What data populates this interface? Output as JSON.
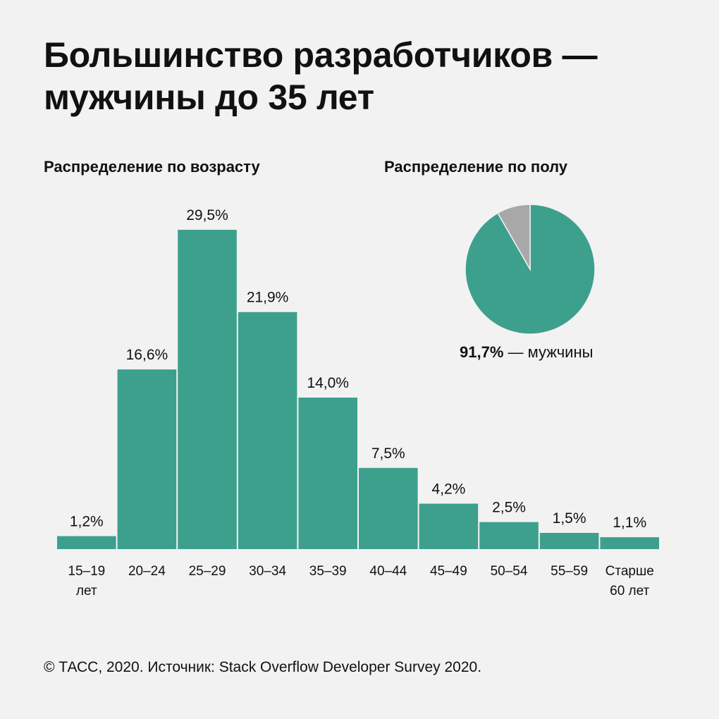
{
  "title_lines": [
    "Большинство разработчиков —",
    "мужчины до 35 лет"
  ],
  "colors": {
    "accent": "#3da08c",
    "secondary": "#a8a8a8",
    "background": "#f2f2f2",
    "text": "#111111"
  },
  "chart_data": [
    {
      "type": "bar",
      "title": "Распределение по возрасту",
      "categories": [
        [
          "15–19",
          "лет"
        ],
        [
          "20–24"
        ],
        [
          "25–29"
        ],
        [
          "30–34"
        ],
        [
          "35–39"
        ],
        [
          "40–44"
        ],
        [
          "45–49"
        ],
        [
          "50–54"
        ],
        [
          "55–59"
        ],
        [
          "Старше",
          "60 лет"
        ]
      ],
      "values": [
        1.2,
        16.6,
        29.5,
        21.9,
        14.0,
        7.5,
        4.2,
        2.5,
        1.5,
        1.1
      ],
      "value_labels": [
        "1,2%",
        "16,6%",
        "29,5%",
        "21,9%",
        "14,0%",
        "7,5%",
        "4,2%",
        "2,5%",
        "1,5%",
        "1,1%"
      ],
      "unit": "%",
      "ylim": [
        0,
        29.5
      ],
      "grid": false
    },
    {
      "type": "pie",
      "title": "Распределение по полу",
      "slices": [
        {
          "value": 91.7,
          "color": "#3da08c"
        },
        {
          "value": 8.3,
          "color": "#a8a8a8"
        }
      ],
      "caption_value": "91,7%",
      "caption_text": " — мужчины"
    }
  ],
  "source": "© ТАСС, 2020. Источник: Stack Overflow Developer Survey 2020."
}
